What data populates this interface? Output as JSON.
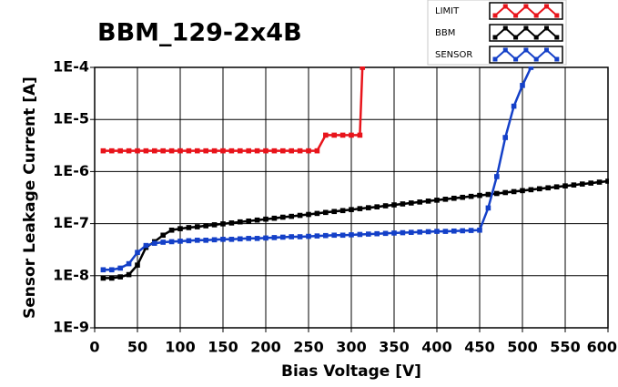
{
  "chart_data": {
    "type": "line",
    "title": "BBM_129-2x4B",
    "x_label": "Bias Voltage [V]",
    "y_label": "Sensor Leakage Current [A]",
    "log_y": true,
    "grid": true,
    "legend": "top-right",
    "xlim": [
      0,
      600
    ],
    "xticks": [
      0,
      50,
      100,
      150,
      200,
      250,
      300,
      350,
      400,
      450,
      500,
      550,
      600
    ],
    "ylim": [
      1e-09,
      0.0001
    ],
    "yticks": [
      {
        "value": 1e-09,
        "label": "1E-9"
      },
      {
        "value": 1e-08,
        "label": "1E-8"
      },
      {
        "value": 1e-07,
        "label": "1E-7"
      },
      {
        "value": 1e-06,
        "label": "1E-6"
      },
      {
        "value": 1e-05,
        "label": "1E-5"
      },
      {
        "value": 0.0001,
        "label": "1E-4"
      }
    ],
    "series": [
      {
        "name": "LIMIT",
        "color": "#e8141b",
        "x": [
          10,
          20,
          30,
          40,
          50,
          60,
          70,
          80,
          90,
          100,
          110,
          120,
          130,
          140,
          150,
          160,
          170,
          180,
          190,
          200,
          210,
          220,
          230,
          240,
          250,
          260,
          270,
          280,
          290,
          300,
          310,
          313
        ],
        "values": [
          2.5e-06,
          2.5e-06,
          2.5e-06,
          2.5e-06,
          2.5e-06,
          2.5e-06,
          2.5e-06,
          2.5e-06,
          2.5e-06,
          2.5e-06,
          2.5e-06,
          2.5e-06,
          2.5e-06,
          2.5e-06,
          2.5e-06,
          2.5e-06,
          2.5e-06,
          2.5e-06,
          2.5e-06,
          2.5e-06,
          2.5e-06,
          2.5e-06,
          2.5e-06,
          2.5e-06,
          2.5e-06,
          2.5e-06,
          5e-06,
          5e-06,
          5e-06,
          5e-06,
          5e-06,
          0.0001
        ]
      },
      {
        "name": "BBM",
        "color": "#000000",
        "x": [
          10,
          20,
          30,
          40,
          50,
          60,
          70,
          80,
          90,
          100,
          110,
          120,
          130,
          140,
          150,
          160,
          170,
          180,
          190,
          200,
          210,
          220,
          230,
          240,
          250,
          260,
          270,
          280,
          290,
          300,
          310,
          320,
          330,
          340,
          350,
          360,
          370,
          380,
          390,
          400,
          410,
          420,
          430,
          440,
          450,
          460,
          470,
          480,
          490,
          500,
          510,
          520,
          530,
          540,
          550,
          560,
          570,
          580,
          590,
          600
        ],
        "values": [
          9e-09,
          9e-09,
          9.5e-09,
          1.05e-08,
          1.6e-08,
          3.5e-08,
          4.5e-08,
          6e-08,
          7.5e-08,
          8e-08,
          8.4e-08,
          8.7e-08,
          9.1e-08,
          9.5e-08,
          9.9e-08,
          1.03e-07,
          1.08e-07,
          1.12e-07,
          1.17e-07,
          1.22e-07,
          1.27e-07,
          1.33e-07,
          1.38e-07,
          1.44e-07,
          1.5e-07,
          1.57e-07,
          1.64e-07,
          1.71e-07,
          1.78e-07,
          1.86e-07,
          1.94e-07,
          2.02e-07,
          2.1e-07,
          2.2e-07,
          2.29e-07,
          2.39e-07,
          2.49e-07,
          2.6e-07,
          2.71e-07,
          2.82e-07,
          2.94e-07,
          3.07e-07,
          3.2e-07,
          3.34e-07,
          3.48e-07,
          3.63e-07,
          3.79e-07,
          3.95e-07,
          4.12e-07,
          4.3e-07,
          4.48e-07,
          4.67e-07,
          4.87e-07,
          5.08e-07,
          5.3e-07,
          5.52e-07,
          5.76e-07,
          6e-07,
          6.26e-07,
          6.53e-07
        ]
      },
      {
        "name": "SENSOR",
        "color": "#1440c8",
        "x": [
          10,
          20,
          30,
          40,
          50,
          60,
          70,
          80,
          90,
          100,
          110,
          120,
          130,
          140,
          150,
          160,
          170,
          180,
          190,
          200,
          210,
          220,
          230,
          240,
          250,
          260,
          270,
          280,
          290,
          300,
          310,
          320,
          330,
          340,
          350,
          360,
          370,
          380,
          390,
          400,
          410,
          420,
          430,
          440,
          450,
          460,
          470,
          480,
          490,
          500,
          510
        ],
        "values": [
          1.3e-08,
          1.3e-08,
          1.4e-08,
          1.7e-08,
          2.8e-08,
          3.8e-08,
          4.2e-08,
          4.4e-08,
          4.5e-08,
          4.6e-08,
          4.7e-08,
          4.8e-08,
          4.8e-08,
          4.9e-08,
          5e-08,
          5e-08,
          5.1e-08,
          5.2e-08,
          5.2e-08,
          5.3e-08,
          5.4e-08,
          5.5e-08,
          5.6e-08,
          5.6e-08,
          5.7e-08,
          5.8e-08,
          5.9e-08,
          6e-08,
          6e-08,
          6.1e-08,
          6.2e-08,
          6.3e-08,
          6.4e-08,
          6.5e-08,
          6.6e-08,
          6.7e-08,
          6.8e-08,
          6.9e-08,
          7e-08,
          7.1e-08,
          7.1e-08,
          7.2e-08,
          7.3e-08,
          7.4e-08,
          7.5e-08,
          2e-07,
          8e-07,
          4.5e-06,
          1.8e-05,
          4.5e-05,
          0.0001
        ]
      }
    ]
  }
}
